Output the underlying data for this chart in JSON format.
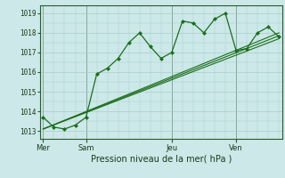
{
  "background_color": "#cce8e8",
  "grid_color": "#aacccc",
  "line_color": "#1a6e1a",
  "marker_color": "#1a6e1a",
  "title": "Pression niveau de la mer( hPa )",
  "day_labels": [
    "Mer",
    "Sam",
    "Jeu",
    "Ven"
  ],
  "day_positions": [
    0,
    4,
    12,
    18
  ],
  "xlim": [
    -0.3,
    22.3
  ],
  "ylim": [
    1012.6,
    1019.4
  ],
  "yticks": [
    1013,
    1014,
    1015,
    1016,
    1017,
    1018,
    1019
  ],
  "series1_x": [
    0,
    1,
    2,
    3,
    4,
    5,
    6,
    7,
    8,
    9,
    10,
    11,
    12,
    13,
    14,
    15,
    16,
    17,
    18,
    19,
    20,
    21,
    22
  ],
  "series1_y": [
    1013.7,
    1013.2,
    1013.1,
    1013.3,
    1013.7,
    1015.9,
    1016.2,
    1016.7,
    1017.5,
    1018.0,
    1017.3,
    1016.7,
    1017.0,
    1018.6,
    1018.5,
    1018.0,
    1018.7,
    1019.0,
    1017.1,
    1017.2,
    1018.0,
    1018.3,
    1017.8
  ],
  "series2_x": [
    0,
    22
  ],
  "series2_y": [
    1013.1,
    1017.7
  ],
  "series3_x": [
    0,
    22
  ],
  "series3_y": [
    1013.1,
    1017.85
  ],
  "series4_x": [
    0,
    22
  ],
  "series4_y": [
    1013.1,
    1018.0
  ]
}
